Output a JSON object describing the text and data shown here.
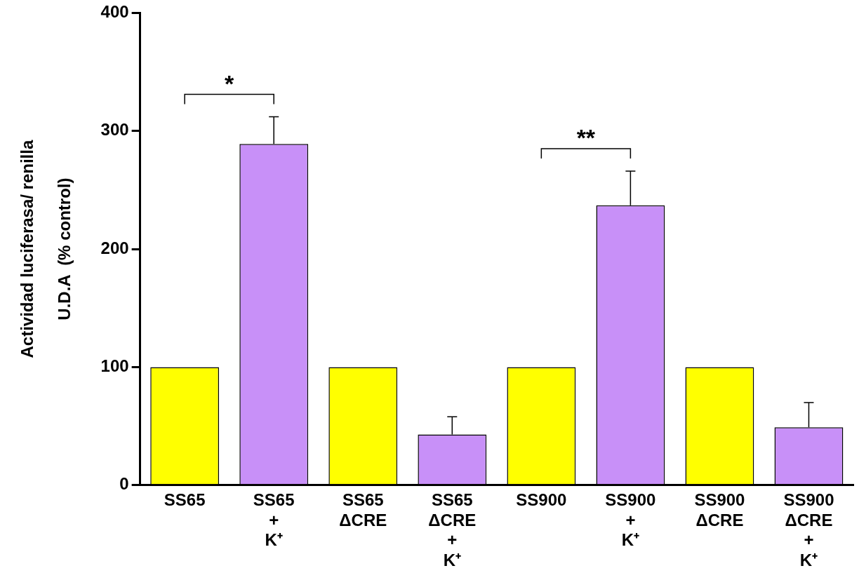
{
  "chart_data": {
    "type": "bar",
    "ylabel": "Actividad luciferasa/ renilla\nU.D.A  (% control)",
    "categories": [
      "SS65",
      "SS65\n+\nK⁺",
      "SS65\nΔCRE",
      "SS65\nΔCRE\n+\nK⁺",
      "SS900",
      "SS900\n+\nK⁺",
      "SS900\nΔCRE",
      "SS900\nΔCRE\n+\nK⁺"
    ],
    "values": [
      100,
      289,
      100,
      43,
      100,
      237,
      100,
      49
    ],
    "colors": [
      "#ffff00",
      "#c890f8",
      "#ffff00",
      "#c890f8",
      "#ffff00",
      "#c890f8",
      "#ffff00",
      "#c890f8"
    ],
    "errors": [
      null,
      [
        289,
        312
      ],
      null,
      [
        43,
        58
      ],
      null,
      [
        237,
        266
      ],
      null,
      [
        49,
        70
      ]
    ],
    "annotations": [
      "*",
      "**"
    ],
    "ylim": [
      0,
      400
    ],
    "yticks": [
      0,
      100,
      200,
      300,
      400
    ],
    "grid": false,
    "legend": false
  }
}
